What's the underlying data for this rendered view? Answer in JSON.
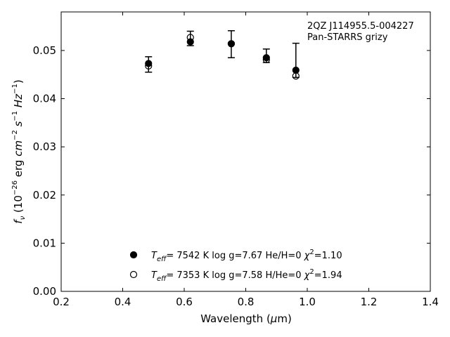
{
  "chart_data": {
    "type": "scatter",
    "title": "",
    "xlabel": "Wavelength (μm)",
    "ylabel": "fν (10⁻²⁶ erg cm⁻² s⁻¹ Hz⁻¹)",
    "xlim": [
      0.2,
      1.4
    ],
    "ylim": [
      0.0,
      0.058
    ],
    "xticks": [
      0.2,
      0.4,
      0.6,
      0.8,
      1.0,
      1.2,
      1.4
    ],
    "xtick_labels": [
      "0.2",
      "0.4",
      "0.6",
      "0.8",
      "1.0",
      "1.2",
      "1.4"
    ],
    "yticks": [
      0.0,
      0.01,
      0.02,
      0.03,
      0.04,
      0.05
    ],
    "ytick_labels": [
      "0.00",
      "0.01",
      "0.02",
      "0.03",
      "0.04",
      "0.05"
    ],
    "annotation": [
      "2QZ J114955.5-004227",
      "Pan-STARRS grizy"
    ],
    "grid": false,
    "legend_placement": "bottom-center",
    "observed": {
      "x": [
        0.484,
        0.62,
        0.753,
        0.867,
        0.963
      ],
      "y": [
        0.0471,
        0.0525,
        0.0513,
        0.0487,
        0.0449
      ],
      "yerr_low": [
        0.0016,
        0.0015,
        0.0028,
        0.0012,
        0.0005
      ],
      "yerr_high": [
        0.0016,
        0.0015,
        0.0028,
        0.0016,
        0.0066
      ]
    },
    "series": [
      {
        "name": "T_eff= 7542 K log g=7.67 He/H=0 χ²=1.10",
        "marker": "filled-circle",
        "x": [
          0.484,
          0.62,
          0.753,
          0.867,
          0.963
        ],
        "y": [
          0.0473,
          0.0518,
          0.0514,
          0.0485,
          0.0459
        ]
      },
      {
        "name": "T_eff= 7353 K log g=7.58 H/He=0 χ²=1.94",
        "marker": "open-circle",
        "x": [
          0.484,
          0.62,
          0.753,
          0.867,
          0.963
        ],
        "y": [
          0.0468,
          0.0527,
          0.0514,
          0.0481,
          0.0447
        ]
      }
    ]
  },
  "legend": {
    "entries": [
      {
        "teff": "7542 K",
        "logg": "log g=7.67",
        "comp": "He/H=0",
        "chi": "=1.10"
      },
      {
        "teff": "7353 K",
        "logg": "log g=7.58",
        "comp": "H/He=0",
        "chi": "=1.94"
      }
    ]
  }
}
